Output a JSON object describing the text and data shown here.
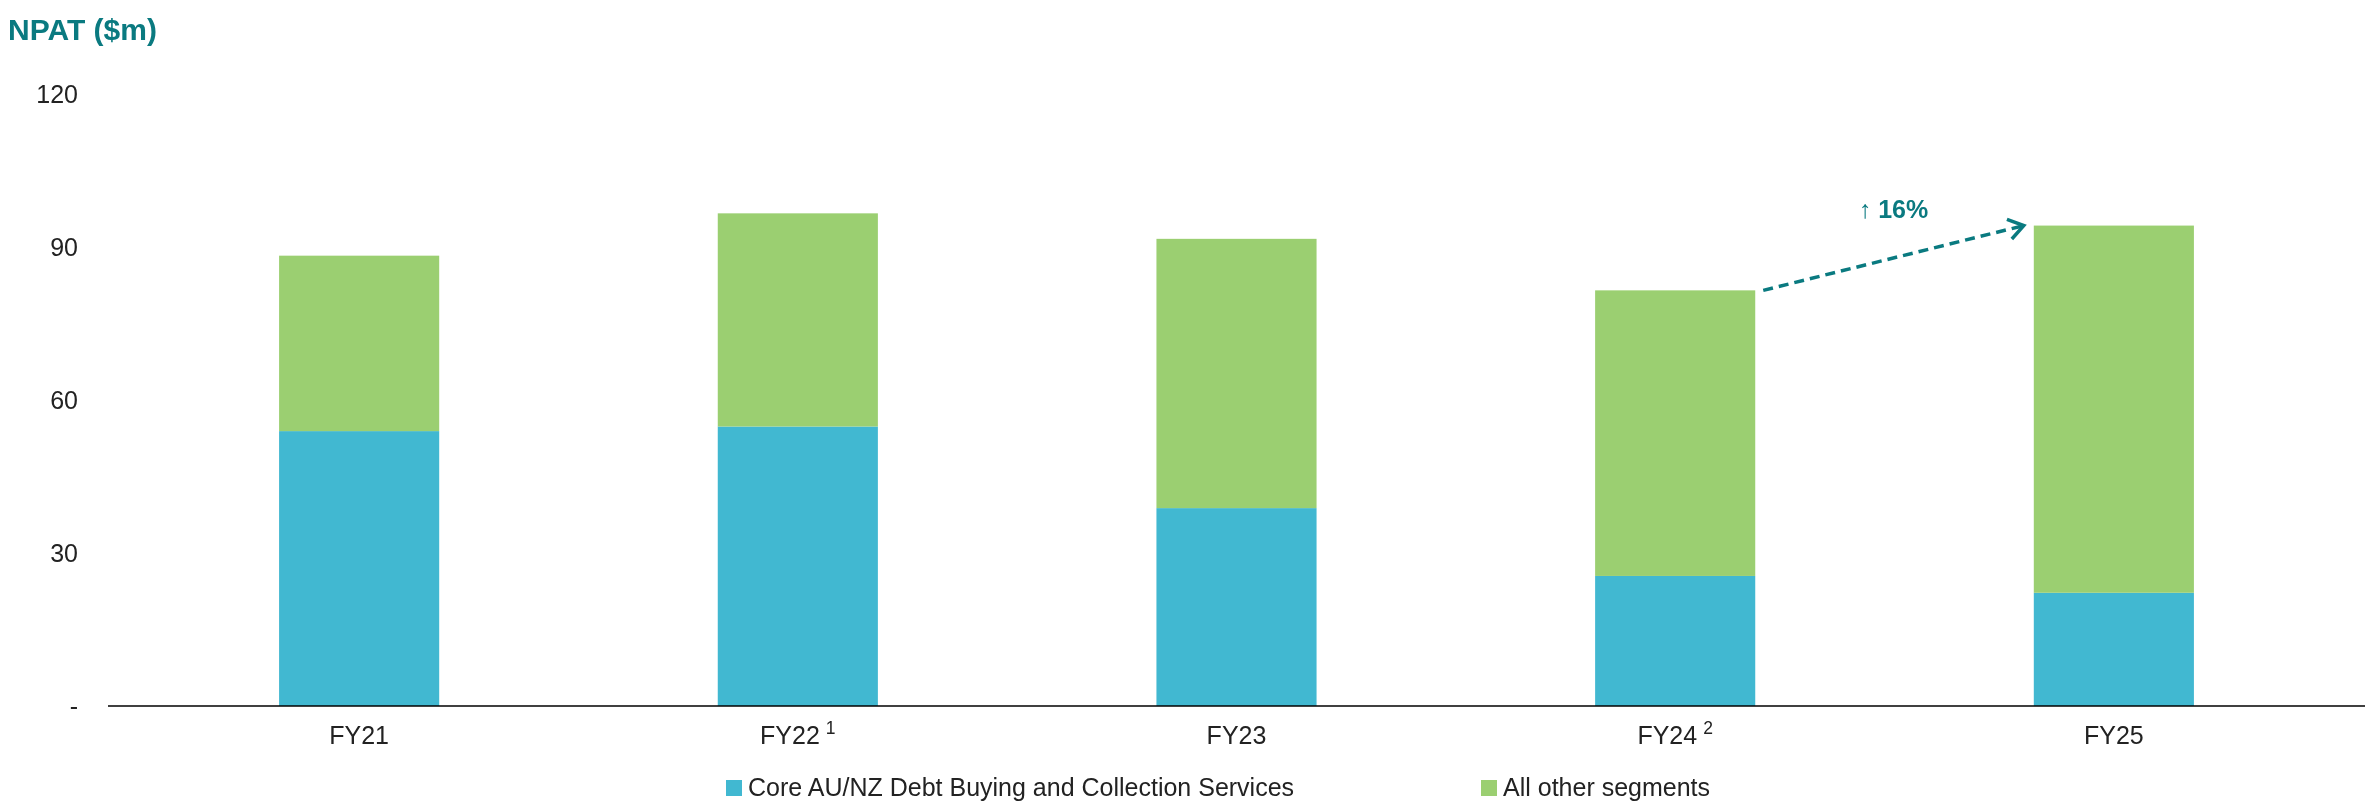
{
  "chart_data": {
    "type": "bar",
    "stacked": true,
    "ylabel": "NPAT ($m)",
    "categories": [
      "FY21",
      "FY22$^{1}$",
      "FY23",
      "FY24$^{2}$",
      "FY25"
    ],
    "series": [
      {
        "name": "Core AU/NZ Debt Buying and Collection Services",
        "color": "#41b8d1",
        "values": [
          53.9,
          54.8,
          38.8,
          25.5,
          22.2
        ]
      },
      {
        "name": "All other segments",
        "color": "#9bcf71",
        "values": [
          34.4,
          41.8,
          52.8,
          56.0,
          72.0
        ]
      }
    ],
    "ylim": [
      0,
      120
    ],
    "yticks": [
      {
        "value": 0,
        "label": "-"
      },
      30,
      60,
      90,
      120
    ],
    "annotations": [
      "↑ 16%"
    ],
    "legend": "bottom"
  }
}
